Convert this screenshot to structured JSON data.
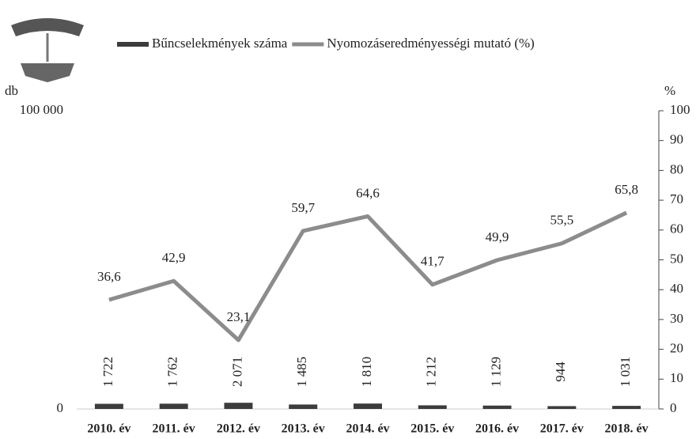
{
  "chart_data": {
    "type": "combo",
    "y_label": "db",
    "y2_label": "%",
    "categories": [
      "2010. év",
      "2011. év",
      "2012. év",
      "2013. év",
      "2014. év",
      "2015. év",
      "2016. év",
      "2017. év",
      "2018. év"
    ],
    "series": [
      {
        "name": "Bűncselekmények száma",
        "type": "bar",
        "color": "#3c3c3c",
        "values": [
          1722,
          1762,
          2071,
          1485,
          1810,
          1212,
          1129,
          944,
          1031
        ],
        "value_labels": [
          "1 722",
          "1 762",
          "2 071",
          "1 485",
          "1 810",
          "1 212",
          "1 129",
          "944",
          "1 031"
        ]
      },
      {
        "name": "Nyomozáseredményességi mutató (%)",
        "type": "line",
        "axis": "y2",
        "color": "#8c8c8c",
        "values": [
          36.6,
          42.9,
          23.1,
          59.7,
          64.6,
          41.7,
          49.9,
          55.5,
          65.8
        ],
        "value_labels": [
          "36,6",
          "42,9",
          "23,1",
          "59,7",
          "64,6",
          "41,7",
          "49,9",
          "55,5",
          "65,8"
        ]
      }
    ],
    "ylim": [
      0,
      100000
    ],
    "yticks": [
      0,
      {
        "value": 100000,
        "label": "100 000"
      }
    ],
    "y2lim": [
      0,
      100
    ],
    "y2ticks": [
      0,
      10,
      20,
      30,
      40,
      50,
      60,
      70,
      80,
      90,
      100
    ],
    "grid": false,
    "legend": "top"
  }
}
